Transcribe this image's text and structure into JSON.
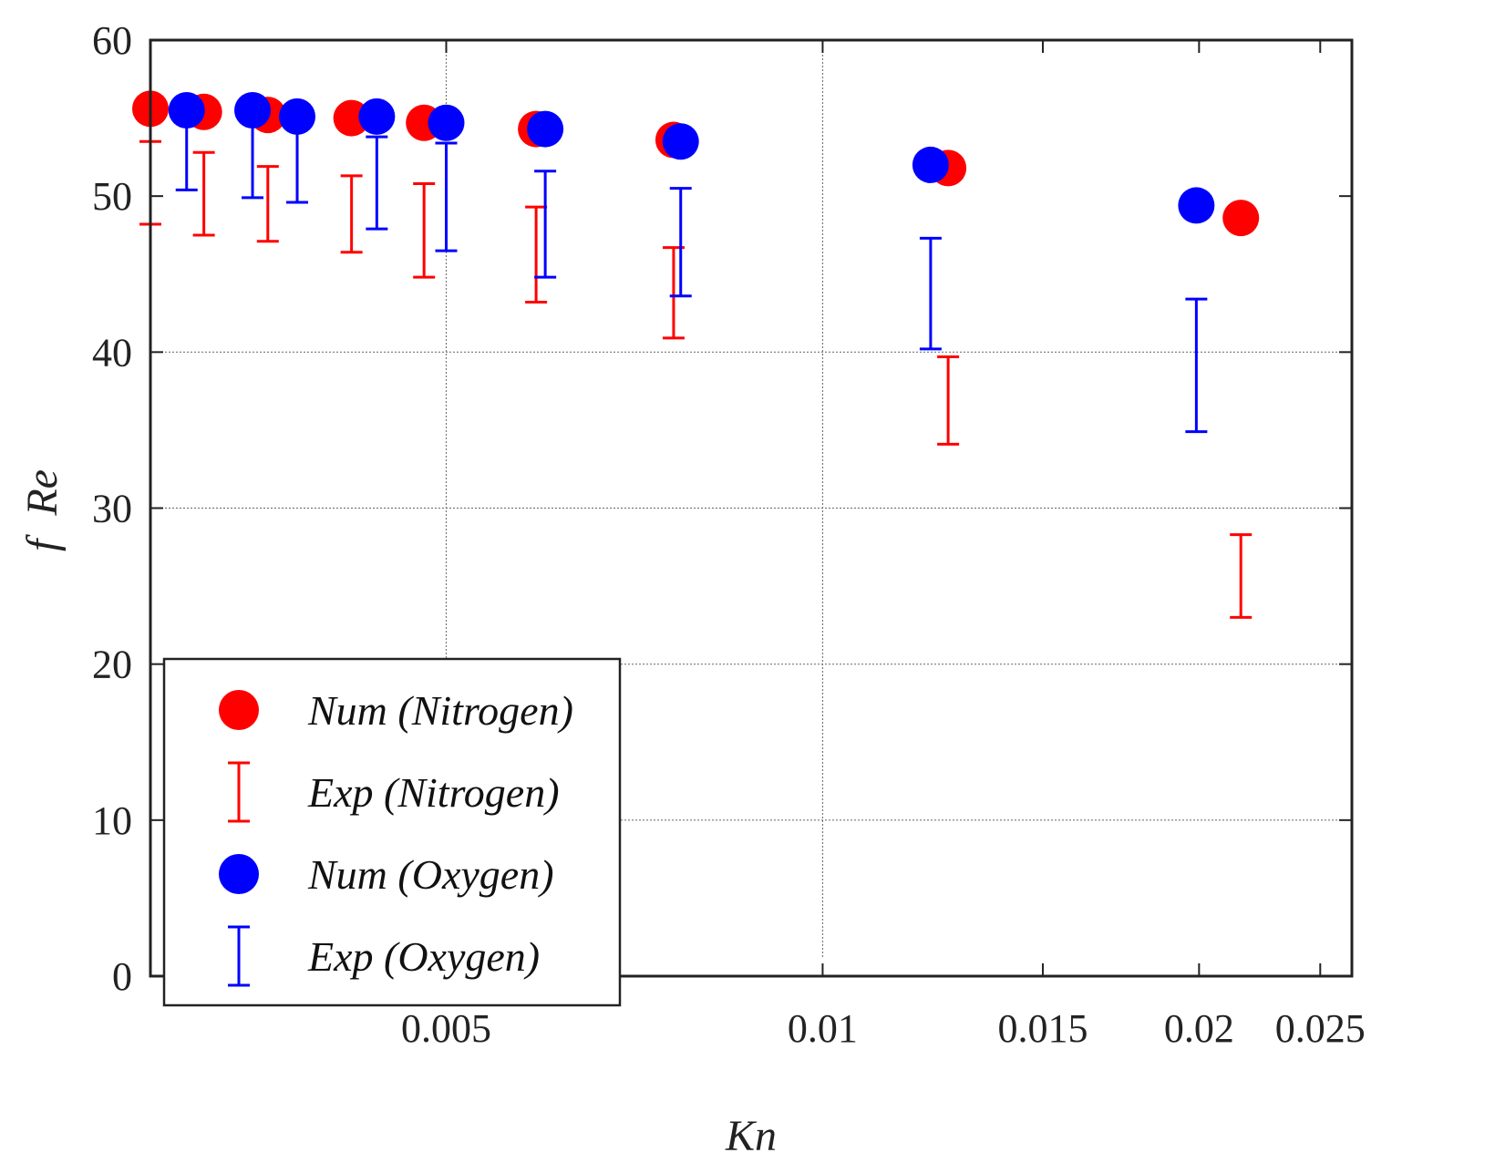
{
  "chart_data": {
    "type": "scatter",
    "xlabel": "Kn",
    "ylabel_f": "f",
    "ylabel_re": "Re",
    "xscale": "log",
    "xlim": [
      0.0029,
      0.0265
    ],
    "ylim": [
      0,
      60
    ],
    "xticks": [
      0.005,
      0.01,
      0.015,
      0.02,
      0.025
    ],
    "xtick_labels": [
      "0.005",
      "0.01",
      "0.015",
      "0.02",
      "0.025"
    ],
    "yticks": [
      0,
      10,
      20,
      30,
      40,
      50,
      60
    ],
    "ytick_labels": [
      "0",
      "10",
      "20",
      "30",
      "40",
      "50",
      "60"
    ],
    "colors": {
      "nitrogen": "#ff0000",
      "oxygen": "#0000ff"
    },
    "series": [
      {
        "name": "Num (Nitrogen)",
        "kind": "marker",
        "color": "#ff0000",
        "x": [
          0.0029,
          0.0032,
          0.0036,
          0.0042,
          0.0048,
          0.0059,
          0.0076,
          0.0126,
          0.0216
        ],
        "y": [
          55.6,
          55.4,
          55.2,
          55.0,
          54.7,
          54.3,
          53.6,
          51.8,
          48.6
        ]
      },
      {
        "name": "Exp (Nitrogen)",
        "kind": "errorbar",
        "color": "#ff0000",
        "x": [
          0.0029,
          0.0032,
          0.0036,
          0.0042,
          0.0048,
          0.0059,
          0.0076,
          0.0126,
          0.0216
        ],
        "low": [
          48.2,
          47.5,
          47.1,
          46.4,
          44.8,
          43.2,
          40.9,
          34.1,
          23.0
        ],
        "high": [
          53.5,
          52.8,
          51.9,
          51.3,
          50.8,
          49.3,
          46.7,
          39.7,
          28.3
        ]
      },
      {
        "name": "Num (Oxygen)",
        "kind": "marker",
        "color": "#0000ff",
        "x": [
          0.0031,
          0.0035,
          0.0038,
          0.0044,
          0.005,
          0.006,
          0.0077,
          0.0122,
          0.0199
        ],
        "y": [
          55.5,
          55.5,
          55.1,
          55.1,
          54.7,
          54.3,
          53.5,
          52.0,
          49.4
        ]
      },
      {
        "name": "Exp (Oxygen)",
        "kind": "errorbar",
        "color": "#0000ff",
        "x": [
          0.0031,
          0.0035,
          0.0038,
          0.0044,
          0.005,
          0.006,
          0.0077,
          0.0122,
          0.0199
        ],
        "low": [
          50.4,
          49.9,
          49.6,
          47.9,
          46.5,
          44.8,
          43.6,
          40.2,
          34.9
        ],
        "high": [
          55.2,
          55.0,
          54.7,
          53.8,
          53.4,
          51.6,
          50.5,
          47.3,
          43.4
        ]
      }
    ],
    "legend": {
      "position": "bottom-left",
      "entries": [
        "Num (Nitrogen)",
        "Exp (Nitrogen)",
        "Num (Oxygen)",
        "Exp (Oxygen)"
      ]
    }
  }
}
